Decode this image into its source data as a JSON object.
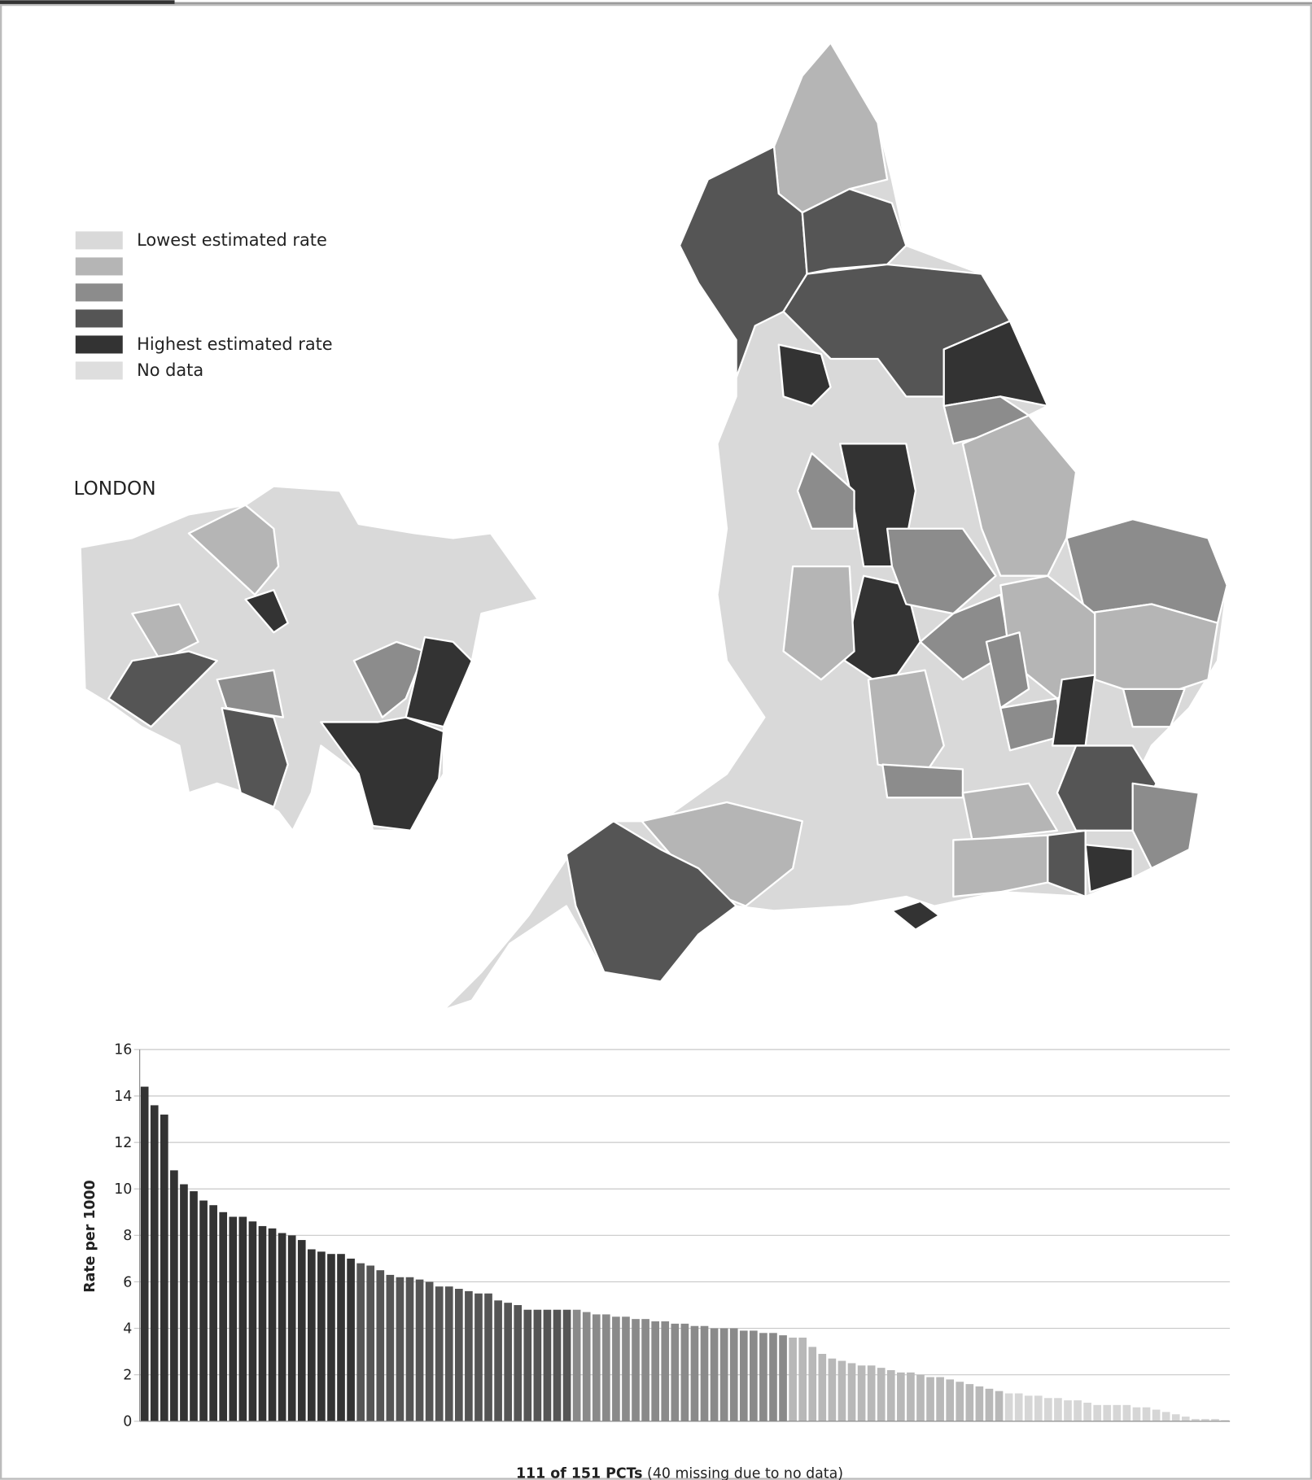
{
  "chart_data": {
    "type": "bar",
    "map_label": "LONDON",
    "legend": [
      {
        "label": "Lowest estimated rate",
        "color": "#d9d9d9"
      },
      {
        "color": "#b5b5b5"
      },
      {
        "color": "#8c8c8c"
      },
      {
        "color": "#555555"
      },
      {
        "label": "Highest estimated rate",
        "color": "#333333"
      },
      {
        "label": "No data",
        "color": "#dedede"
      }
    ],
    "ylabel": "Rate per 1000",
    "xlabel": {
      "bold": "111 of 151 PCTs",
      "rest": "(40 missing due to no data)"
    },
    "ylim": [
      0,
      16
    ],
    "yticks": [
      0,
      2,
      4,
      6,
      8,
      10,
      12,
      14,
      16
    ],
    "grid": true,
    "series": [
      {
        "color": "#333333",
        "values": [
          14.4,
          13.6,
          13.2,
          10.8,
          10.2,
          9.9,
          9.5,
          9.3,
          9.0,
          8.8,
          8.8,
          8.6,
          8.4,
          8.3,
          8.1,
          8.0,
          7.8,
          7.4,
          7.3,
          7.2,
          7.2,
          7.0
        ]
      },
      {
        "color": "#555555",
        "values": [
          6.8,
          6.7,
          6.5,
          6.3,
          6.2,
          6.2,
          6.1,
          6.0,
          5.8,
          5.8,
          5.7,
          5.6,
          5.5,
          5.5,
          5.2,
          5.1,
          5.0,
          4.8,
          4.8,
          4.8,
          4.8,
          4.8
        ]
      },
      {
        "color": "#8a8a8a",
        "values": [
          4.8,
          4.7,
          4.6,
          4.6,
          4.5,
          4.5,
          4.4,
          4.4,
          4.3,
          4.3,
          4.2,
          4.2,
          4.1,
          4.1,
          4.0,
          4.0,
          4.0,
          3.9,
          3.9,
          3.8,
          3.8,
          3.7
        ]
      },
      {
        "color": "#b8b8b8",
        "values": [
          3.6,
          3.6,
          3.2,
          2.9,
          2.7,
          2.6,
          2.5,
          2.4,
          2.4,
          2.3,
          2.2,
          2.1,
          2.1,
          2.0,
          1.9,
          1.9,
          1.8,
          1.7,
          1.6,
          1.5,
          1.4,
          1.3
        ]
      },
      {
        "color": "#d6d6d6",
        "values": [
          1.2,
          1.2,
          1.1,
          1.1,
          1.0,
          1.0,
          0.9,
          0.9,
          0.8,
          0.7,
          0.7,
          0.7,
          0.7,
          0.6,
          0.6,
          0.5,
          0.4,
          0.3,
          0.2,
          0.1,
          0.1,
          0.1,
          0.05
        ]
      }
    ]
  }
}
